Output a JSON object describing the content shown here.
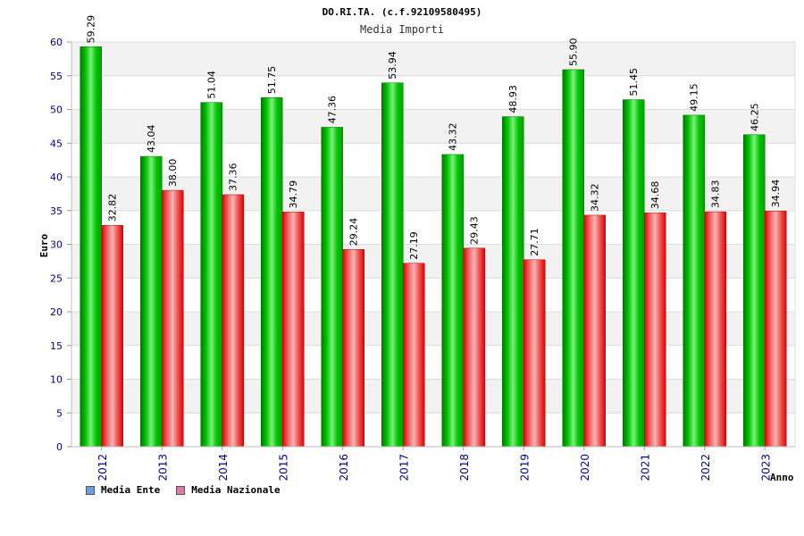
{
  "chart_data": {
    "type": "bar",
    "title": "DO.RI.TA. (c.f.92109580495)",
    "subtitle": "Media Importi",
    "xlabel": "Anno",
    "ylabel": "Euro",
    "ylim": [
      0,
      60
    ],
    "yticks": [
      "0",
      "5",
      "10",
      "15",
      "20",
      "25",
      "30",
      "35",
      "40",
      "45",
      "50",
      "55",
      "60"
    ],
    "categories": [
      "2012",
      "2013",
      "2014",
      "2015",
      "2016",
      "2017",
      "2018",
      "2019",
      "2020",
      "2021",
      "2022",
      "2023"
    ],
    "series": [
      {
        "name": "Media Ente",
        "values": [
          59.29,
          43.04,
          51.04,
          51.75,
          47.36,
          53.94,
          43.32,
          48.93,
          55.9,
          51.45,
          49.15,
          46.25
        ],
        "labels": [
          "59.29",
          "43.04",
          "51.04",
          "51.75",
          "47.36",
          "53.94",
          "43.32",
          "48.93",
          "55.90",
          "51.45",
          "49.15",
          "46.25"
        ],
        "color": "#00b000",
        "legend_color": "#6aa0e0"
      },
      {
        "name": "Media Nazionale",
        "values": [
          32.82,
          38.0,
          37.36,
          34.79,
          29.24,
          27.19,
          29.43,
          27.71,
          34.32,
          34.68,
          34.83,
          34.94
        ],
        "labels": [
          "32.82",
          "38.00",
          "37.36",
          "34.79",
          "29.24",
          "27.19",
          "29.43",
          "27.71",
          "34.32",
          "34.68",
          "34.83",
          "34.94"
        ],
        "color": "#ee1111",
        "legend_color": "#e07aa8"
      }
    ],
    "grid": true,
    "legend": "bottom-left"
  }
}
